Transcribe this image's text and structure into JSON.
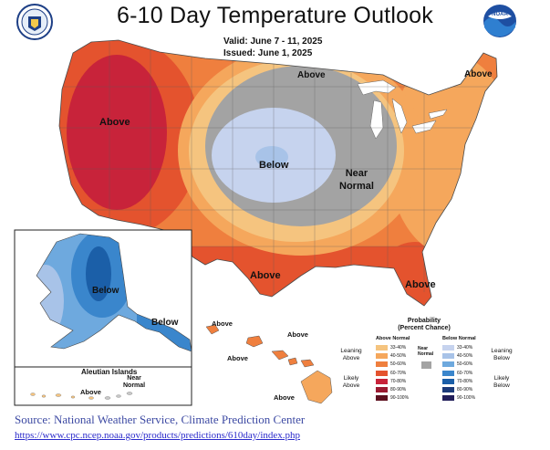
{
  "title": "6-10 Day Temperature Outlook",
  "valid": "Valid:  June 7 - 11, 2025",
  "issued": "Issued:  June 1, 2025",
  "logos": {
    "left": "commerce-seal",
    "right": "noaa-logo"
  },
  "map_labels": {
    "west": "Above",
    "plains": "Below",
    "midwest": "Near\nNormal",
    "north": "Above",
    "northeast": "Above",
    "texas": "Above",
    "florida": "Above",
    "alaska": "Below",
    "panhandle": "Below",
    "aleutian_title": "Aleutian Islands",
    "aleutian_west": "Above",
    "aleutian_east": "Near\nNormal",
    "hawaii_1": "Above",
    "hawaii_2": "Above",
    "hawaii_3": "Above",
    "hawaii_4": "Above"
  },
  "legend": {
    "title": "Probability\n(Percent Chance)",
    "above_header": "Above Normal",
    "below_header": "Below Normal",
    "near_label": "Near\nNormal",
    "leaning_above": "Leaning\nAbove",
    "likely_above": "Likely\nAbove",
    "leaning_below": "Leaning\nBelow",
    "likely_below": "Likely\nBelow",
    "above_bins": [
      "33-40%",
      "40-50%",
      "50-60%",
      "60-70%",
      "70-80%",
      "80-90%",
      "90-100%"
    ],
    "below_bins": [
      "33-40%",
      "40-50%",
      "50-60%",
      "60-70%",
      "70-80%",
      "80-90%",
      "90-100%"
    ],
    "above_colors": [
      "#f5c47f",
      "#f5a75c",
      "#ef7f3e",
      "#e4532e",
      "#c8233a",
      "#9b1a31",
      "#5e1120"
    ],
    "below_colors": [
      "#c6d3ee",
      "#a8c3e8",
      "#6ea9de",
      "#3a86cc",
      "#1b5fa8",
      "#1c3b7a",
      "#221f5a"
    ],
    "near_color": "#a3a3a3"
  },
  "source": "Source: National Weather Service, Climate Prediction Center",
  "url": "https://www.cpc.ncep.noaa.gov/products/predictions/610day/index.php"
}
